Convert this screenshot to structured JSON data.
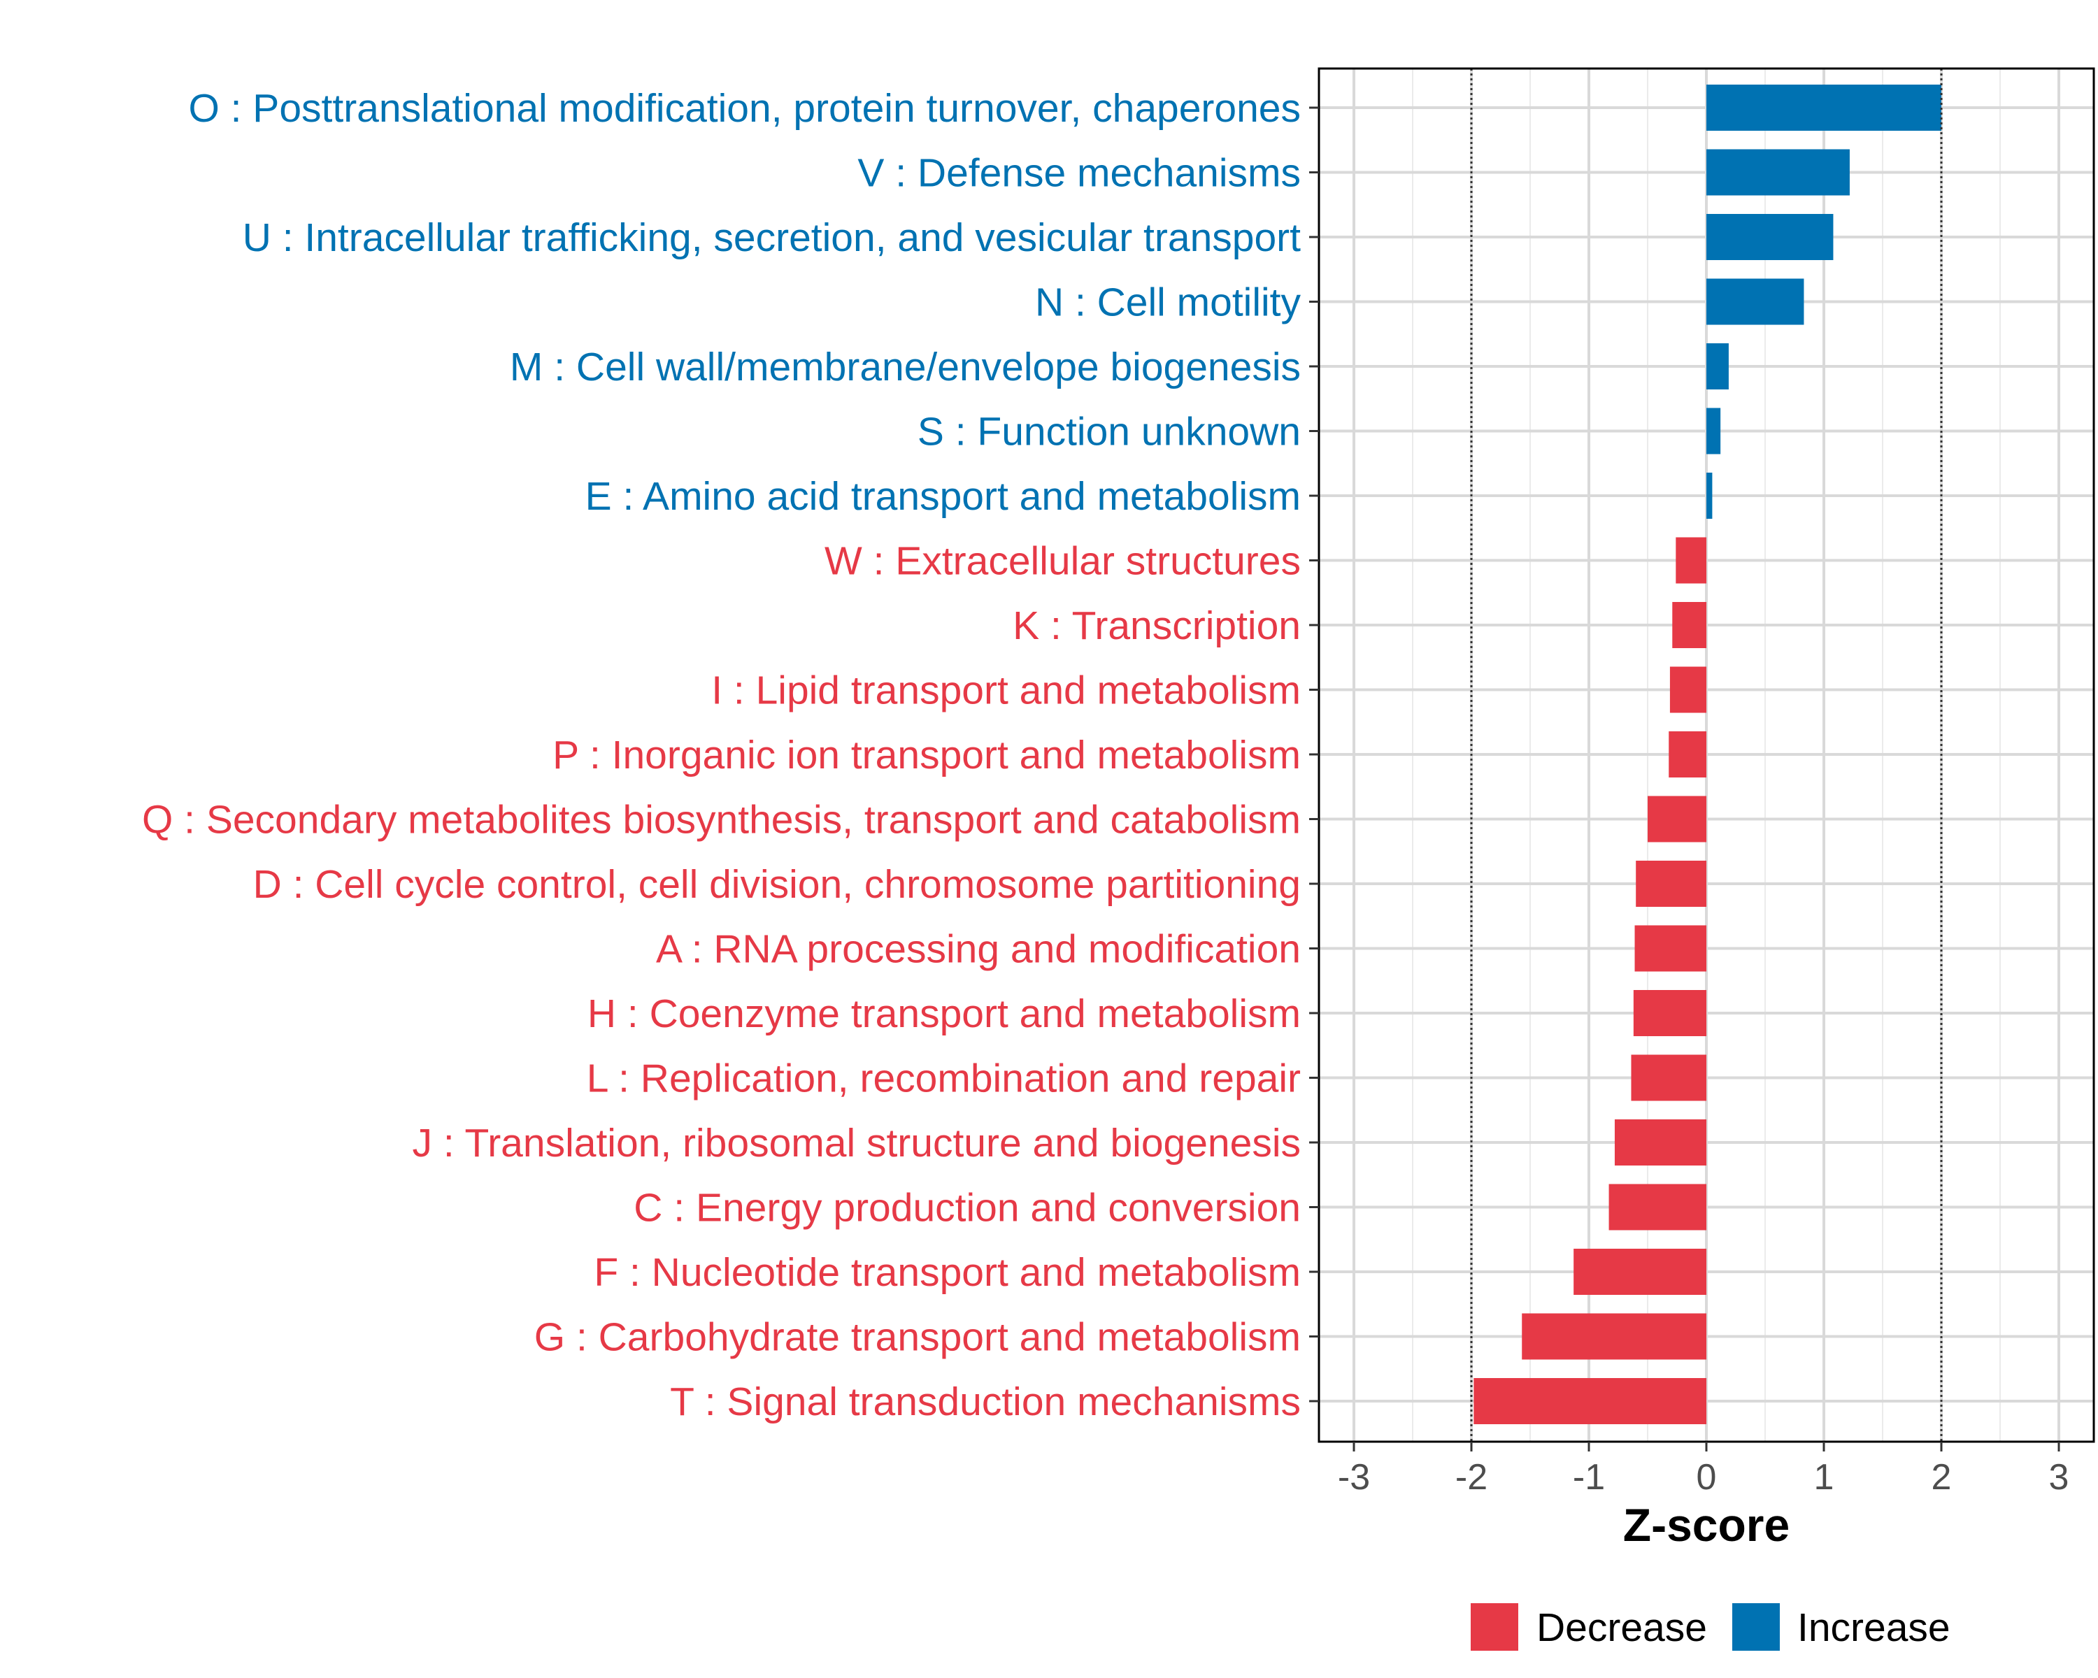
{
  "chart_data": {
    "type": "bar",
    "orientation": "horizontal",
    "title": "",
    "xlabel": "Z-score",
    "ylabel": "",
    "xlim": [
      -3.3,
      3.3
    ],
    "xticks": [
      -3,
      -2,
      -1,
      0,
      1,
      2,
      3
    ],
    "xtick_labels": [
      "-3",
      "-2",
      "-1",
      "0",
      "1",
      "2",
      "3"
    ],
    "reference_lines": [
      -2,
      2
    ],
    "grid": true,
    "legend_position": "bottom",
    "colors": {
      "Decrease": "#E63946",
      "Increase": "#0072B2"
    },
    "legend": [
      {
        "name": "Decrease",
        "color": "#E63946"
      },
      {
        "name": "Increase",
        "color": "#0072B2"
      }
    ],
    "categories": [
      {
        "label": "O : Posttranslational modification, protein turnover, chaperones",
        "value": 2.0,
        "group": "Increase"
      },
      {
        "label": "V : Defense mechanisms",
        "value": 1.22,
        "group": "Increase"
      },
      {
        "label": "U : Intracellular trafficking, secretion, and vesicular transport",
        "value": 1.08,
        "group": "Increase"
      },
      {
        "label": "N : Cell motility",
        "value": 0.83,
        "group": "Increase"
      },
      {
        "label": "M : Cell wall/membrane/envelope biogenesis",
        "value": 0.19,
        "group": "Increase"
      },
      {
        "label": "S : Function unknown",
        "value": 0.12,
        "group": "Increase"
      },
      {
        "label": "E : Amino acid transport and metabolism",
        "value": 0.05,
        "group": "Increase"
      },
      {
        "label": "W : Extracellular structures",
        "value": -0.26,
        "group": "Decrease"
      },
      {
        "label": "K : Transcription",
        "value": -0.29,
        "group": "Decrease"
      },
      {
        "label": "I : Lipid transport and metabolism",
        "value": -0.31,
        "group": "Decrease"
      },
      {
        "label": "P : Inorganic ion transport and metabolism",
        "value": -0.32,
        "group": "Decrease"
      },
      {
        "label": "Q : Secondary metabolites biosynthesis, transport and catabolism",
        "value": -0.5,
        "group": "Decrease"
      },
      {
        "label": "D : Cell cycle control, cell division, chromosome partitioning",
        "value": -0.6,
        "group": "Decrease"
      },
      {
        "label": "A : RNA processing and modification",
        "value": -0.61,
        "group": "Decrease"
      },
      {
        "label": "H : Coenzyme transport and metabolism",
        "value": -0.62,
        "group": "Decrease"
      },
      {
        "label": "L : Replication, recombination and repair",
        "value": -0.64,
        "group": "Decrease"
      },
      {
        "label": "J : Translation, ribosomal structure and biogenesis",
        "value": -0.78,
        "group": "Decrease"
      },
      {
        "label": "C : Energy production and conversion",
        "value": -0.83,
        "group": "Decrease"
      },
      {
        "label": "F : Nucleotide transport and metabolism",
        "value": -1.13,
        "group": "Decrease"
      },
      {
        "label": "G : Carbohydrate transport and metabolism",
        "value": -1.57,
        "group": "Decrease"
      },
      {
        "label": "T : Signal transduction mechanisms",
        "value": -1.98,
        "group": "Decrease"
      }
    ]
  }
}
